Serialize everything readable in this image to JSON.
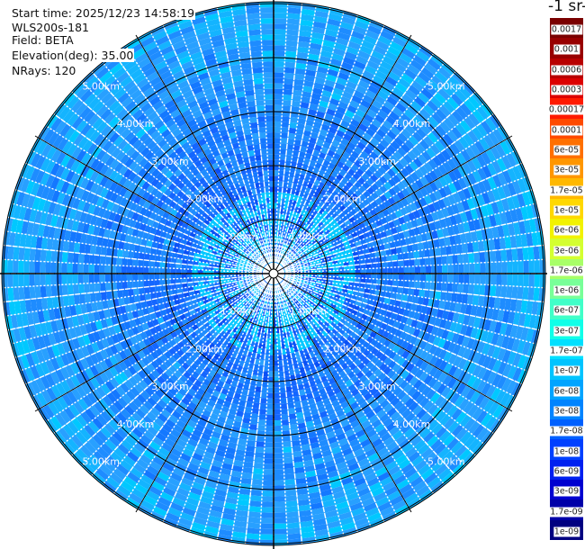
{
  "info": {
    "start_time": "Start time: 2025/12/23 14:58:19",
    "instrument": "WLS200s-181",
    "field": "Field: BETA",
    "elevation": "Elevation(deg): 35.00",
    "nrays": "NRays: 120"
  },
  "chart_data": {
    "type": "heatmap",
    "projection": "polar (PPI)",
    "rays": 120,
    "range_rings": [
      "1.00km",
      "2.00km",
      "3.00km",
      "4.00km",
      "5.00km"
    ],
    "range_max_km": 5.0,
    "spoke_angles_deg": [
      0,
      30,
      60,
      90,
      120,
      150,
      180,
      210,
      240,
      270,
      300,
      330
    ],
    "typical_level_by_ring": [
      "1e-08",
      "1.7e-08",
      "3e-08",
      "6e-08",
      "6e-08"
    ],
    "colorbar": {
      "title": "-1 sr-",
      "labels": [
        "0.0017",
        "0.001",
        "0.0006",
        "0.0003",
        "0.00017",
        "0.0001",
        "6e-05",
        "3e-05",
        "1.7e-05",
        "1e-05",
        "6e-06",
        "3e-06",
        "1.7e-06",
        "1e-06",
        "6e-07",
        "3e-07",
        "1.7e-07",
        "1e-07",
        "6e-08",
        "3e-08",
        "1.7e-08",
        "1e-08",
        "6e-09",
        "3e-09",
        "1.7e-09",
        "1e-09"
      ],
      "colors": [
        "#7a0000",
        "#980000",
        "#b80000",
        "#dc0000",
        "#ff1a00",
        "#ff4a00",
        "#ff7000",
        "#ff9600",
        "#ffb800",
        "#ffd800",
        "#f2f200",
        "#d4ff30",
        "#a8ff68",
        "#78ff98",
        "#40ffc8",
        "#10ffe8",
        "#00e0ff",
        "#00c4ff",
        "#00a4ff",
        "#0084ff",
        "#0060ff",
        "#0040ff",
        "#0020f0",
        "#0000d0",
        "#0000a8",
        "#000080"
      ]
    },
    "grid": true
  }
}
